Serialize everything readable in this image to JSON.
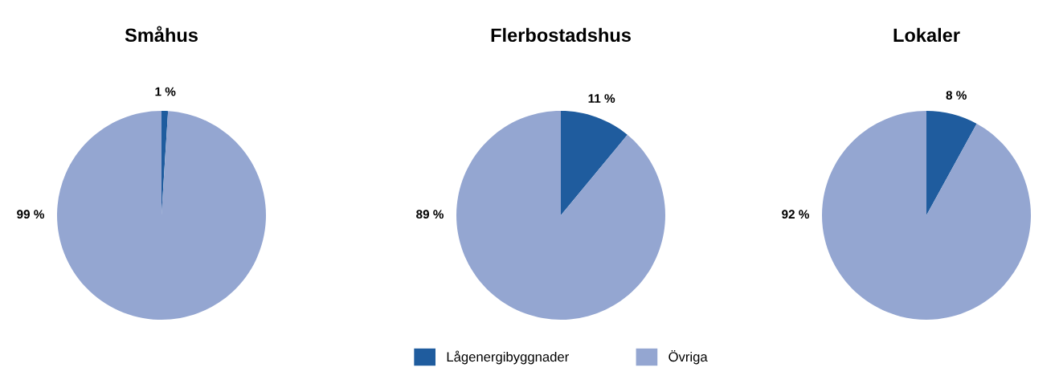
{
  "chart_data": [
    {
      "type": "pie",
      "title": "Småhus",
      "categories": [
        null,
        null
      ],
      "values": [
        1,
        99
      ],
      "colors": [
        "#1f5c9e",
        "#94a6d1"
      ],
      "value_labels": [
        "1 %",
        "99 %"
      ],
      "legend": false
    },
    {
      "type": "pie",
      "title": "Flerbostadshus",
      "categories": [
        "Lågenergibyggnader",
        "Övriga"
      ],
      "values": [
        11,
        89
      ],
      "colors": [
        "#1f5c9e",
        "#94a6d1"
      ],
      "value_labels": [
        "11 %",
        "89 %"
      ],
      "legend": "bottom"
    },
    {
      "type": "pie",
      "title": "Lokaler",
      "categories": [
        null,
        null
      ],
      "values": [
        8,
        92
      ],
      "colors": [
        "#1f5c9e",
        "#94a6d1"
      ],
      "value_labels": [
        "8 %",
        "92 %"
      ],
      "legend": false
    }
  ]
}
